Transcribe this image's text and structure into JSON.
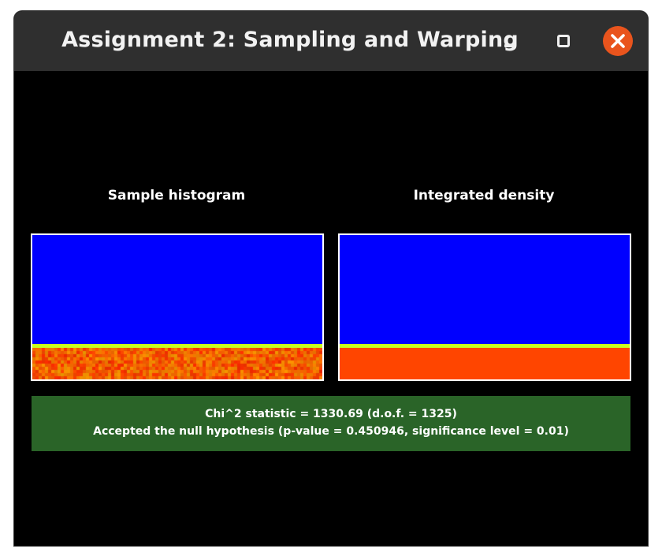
{
  "window": {
    "title": "Assignment 2: Sampling and Warping"
  },
  "panels": {
    "left_label": "Sample histogram",
    "right_label": "Integrated density"
  },
  "result": {
    "statistic_line": "Chi^2 statistic = 1330.69 (d.o.f. = 1325)",
    "verdict_line": "Accepted the null hypothesis (p-value = 0.450946, significance level = 0.01)"
  },
  "colors": {
    "low_density": "#0000ff",
    "boundary": "#c8ff20",
    "high_density": "#ff4500",
    "result_background": "#2a6428",
    "close_button": "#e9541d"
  },
  "icons": {
    "minimize": "minimize-icon",
    "maximize": "maximize-icon",
    "close": "close-icon"
  }
}
